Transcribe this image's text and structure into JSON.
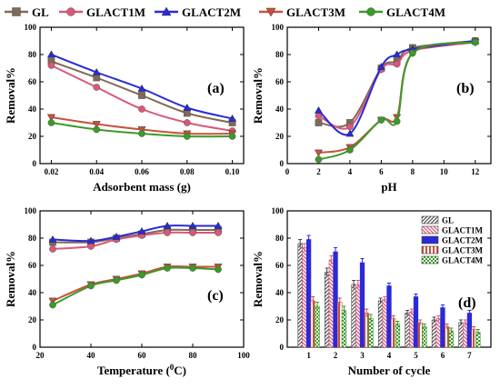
{
  "legend_top": {
    "entries": [
      {
        "label": "GL",
        "color": "#7f6a55",
        "marker": "square"
      },
      {
        "label": "GLACT1M",
        "color": "#d8587a",
        "marker": "circle"
      },
      {
        "label": "GLACT2M",
        "color": "#2a2ad8",
        "marker": "triangle-up"
      },
      {
        "label": "GLACT3M",
        "color": "#c8523a",
        "marker": "triangle-down"
      },
      {
        "label": "GLACT4M",
        "color": "#3a9a2a",
        "marker": "circle"
      }
    ]
  },
  "chart_data": [
    {
      "type": "line",
      "panel_label": "(a)",
      "xlabel": "Adsorbent mass (g)",
      "ylabel": "Removal%",
      "xlim": [
        0.015,
        0.105
      ],
      "ylim": [
        0,
        100
      ],
      "xticks": [
        "0.02",
        "0.04",
        "0.06",
        "0.08",
        "0.10"
      ],
      "yticks": [
        "0",
        "20",
        "40",
        "60",
        "80",
        "100"
      ],
      "x": [
        0.02,
        0.04,
        0.06,
        0.08,
        0.1
      ],
      "series": [
        {
          "name": "GL",
          "values": [
            75,
            63,
            50,
            37,
            30
          ]
        },
        {
          "name": "GLACT1M",
          "values": [
            72,
            56,
            40,
            30,
            24
          ]
        },
        {
          "name": "GLACT2M",
          "values": [
            80,
            67,
            55,
            41,
            33
          ]
        },
        {
          "name": "GLACT3M",
          "values": [
            34,
            29,
            25,
            22,
            22
          ]
        },
        {
          "name": "GLACT4M",
          "values": [
            30,
            25,
            22,
            20,
            20
          ]
        }
      ]
    },
    {
      "type": "line",
      "panel_label": "(b)",
      "xlabel": "pH",
      "ylabel": "Removal%",
      "xlim": [
        0,
        13
      ],
      "ylim": [
        0,
        100
      ],
      "xticks": [
        "0",
        "2",
        "4",
        "6",
        "8",
        "10",
        "12"
      ],
      "yticks": [
        "0",
        "20",
        "40",
        "60",
        "80",
        "100"
      ],
      "x": [
        2,
        4,
        6,
        7,
        8,
        12
      ],
      "series": [
        {
          "name": "GL",
          "values": [
            30,
            30,
            70,
            75,
            85,
            90
          ]
        },
        {
          "name": "GLACT1M",
          "values": [
            35,
            27,
            69,
            73,
            83,
            89
          ]
        },
        {
          "name": "GLACT2M",
          "values": [
            39,
            22,
            71,
            80,
            84,
            90
          ]
        },
        {
          "name": "GLACT3M",
          "values": [
            8,
            12,
            32,
            34,
            81,
            89
          ]
        },
        {
          "name": "GLACT4M",
          "values": [
            3,
            10,
            32,
            31,
            81,
            89
          ]
        }
      ]
    },
    {
      "type": "line",
      "panel_label": "(c)",
      "xlabel": "Temperature (",
      "xlabel_sup": "0",
      "xlabel_end": "C)",
      "ylabel": "Removal%",
      "xlim": [
        20,
        100
      ],
      "ylim": [
        0,
        100
      ],
      "xticks": [
        "20",
        "40",
        "60",
        "80",
        "100"
      ],
      "yticks": [
        "0",
        "20",
        "40",
        "60",
        "80",
        "100"
      ],
      "x": [
        25,
        40,
        50,
        60,
        70,
        80,
        90
      ],
      "series": [
        {
          "name": "GL",
          "values": [
            77,
            77,
            80,
            83,
            86,
            86,
            86
          ]
        },
        {
          "name": "GLACT1M",
          "values": [
            72,
            74,
            79,
            82,
            84,
            84,
            84
          ]
        },
        {
          "name": "GLACT2M",
          "values": [
            79,
            78,
            81,
            85,
            89,
            89,
            89
          ]
        },
        {
          "name": "GLACT3M",
          "values": [
            34,
            46,
            50,
            54,
            59,
            59,
            59
          ]
        },
        {
          "name": "GLACT4M",
          "values": [
            31,
            45,
            49,
            53,
            58,
            58,
            57
          ]
        }
      ]
    },
    {
      "type": "bar",
      "panel_label": "(d)",
      "xlabel": "Number of cycle",
      "ylabel": "Removal%",
      "ylim": [
        0,
        100
      ],
      "yticks": [
        "0",
        "20",
        "40",
        "60",
        "80",
        "100"
      ],
      "categories": [
        "1",
        "2",
        "3",
        "4",
        "5",
        "6",
        "7"
      ],
      "legend_position": "top-right",
      "series": [
        {
          "name": "GL",
          "values": [
            76,
            55,
            46,
            34,
            25,
            20,
            18
          ]
        },
        {
          "name": "GLACT1M",
          "values": [
            73,
            64,
            46,
            35,
            26,
            21,
            18
          ]
        },
        {
          "name": "GLACT2M",
          "values": [
            79,
            70,
            62,
            45,
            37,
            29,
            25
          ]
        },
        {
          "name": "GLACT3M",
          "values": [
            34,
            33,
            25,
            21,
            18,
            15,
            13
          ]
        },
        {
          "name": "GLACT4M",
          "values": [
            30,
            27,
            21,
            17,
            15,
            12,
            11
          ]
        }
      ],
      "errors": [
        3,
        3,
        3,
        2,
        2,
        2,
        2
      ]
    }
  ]
}
